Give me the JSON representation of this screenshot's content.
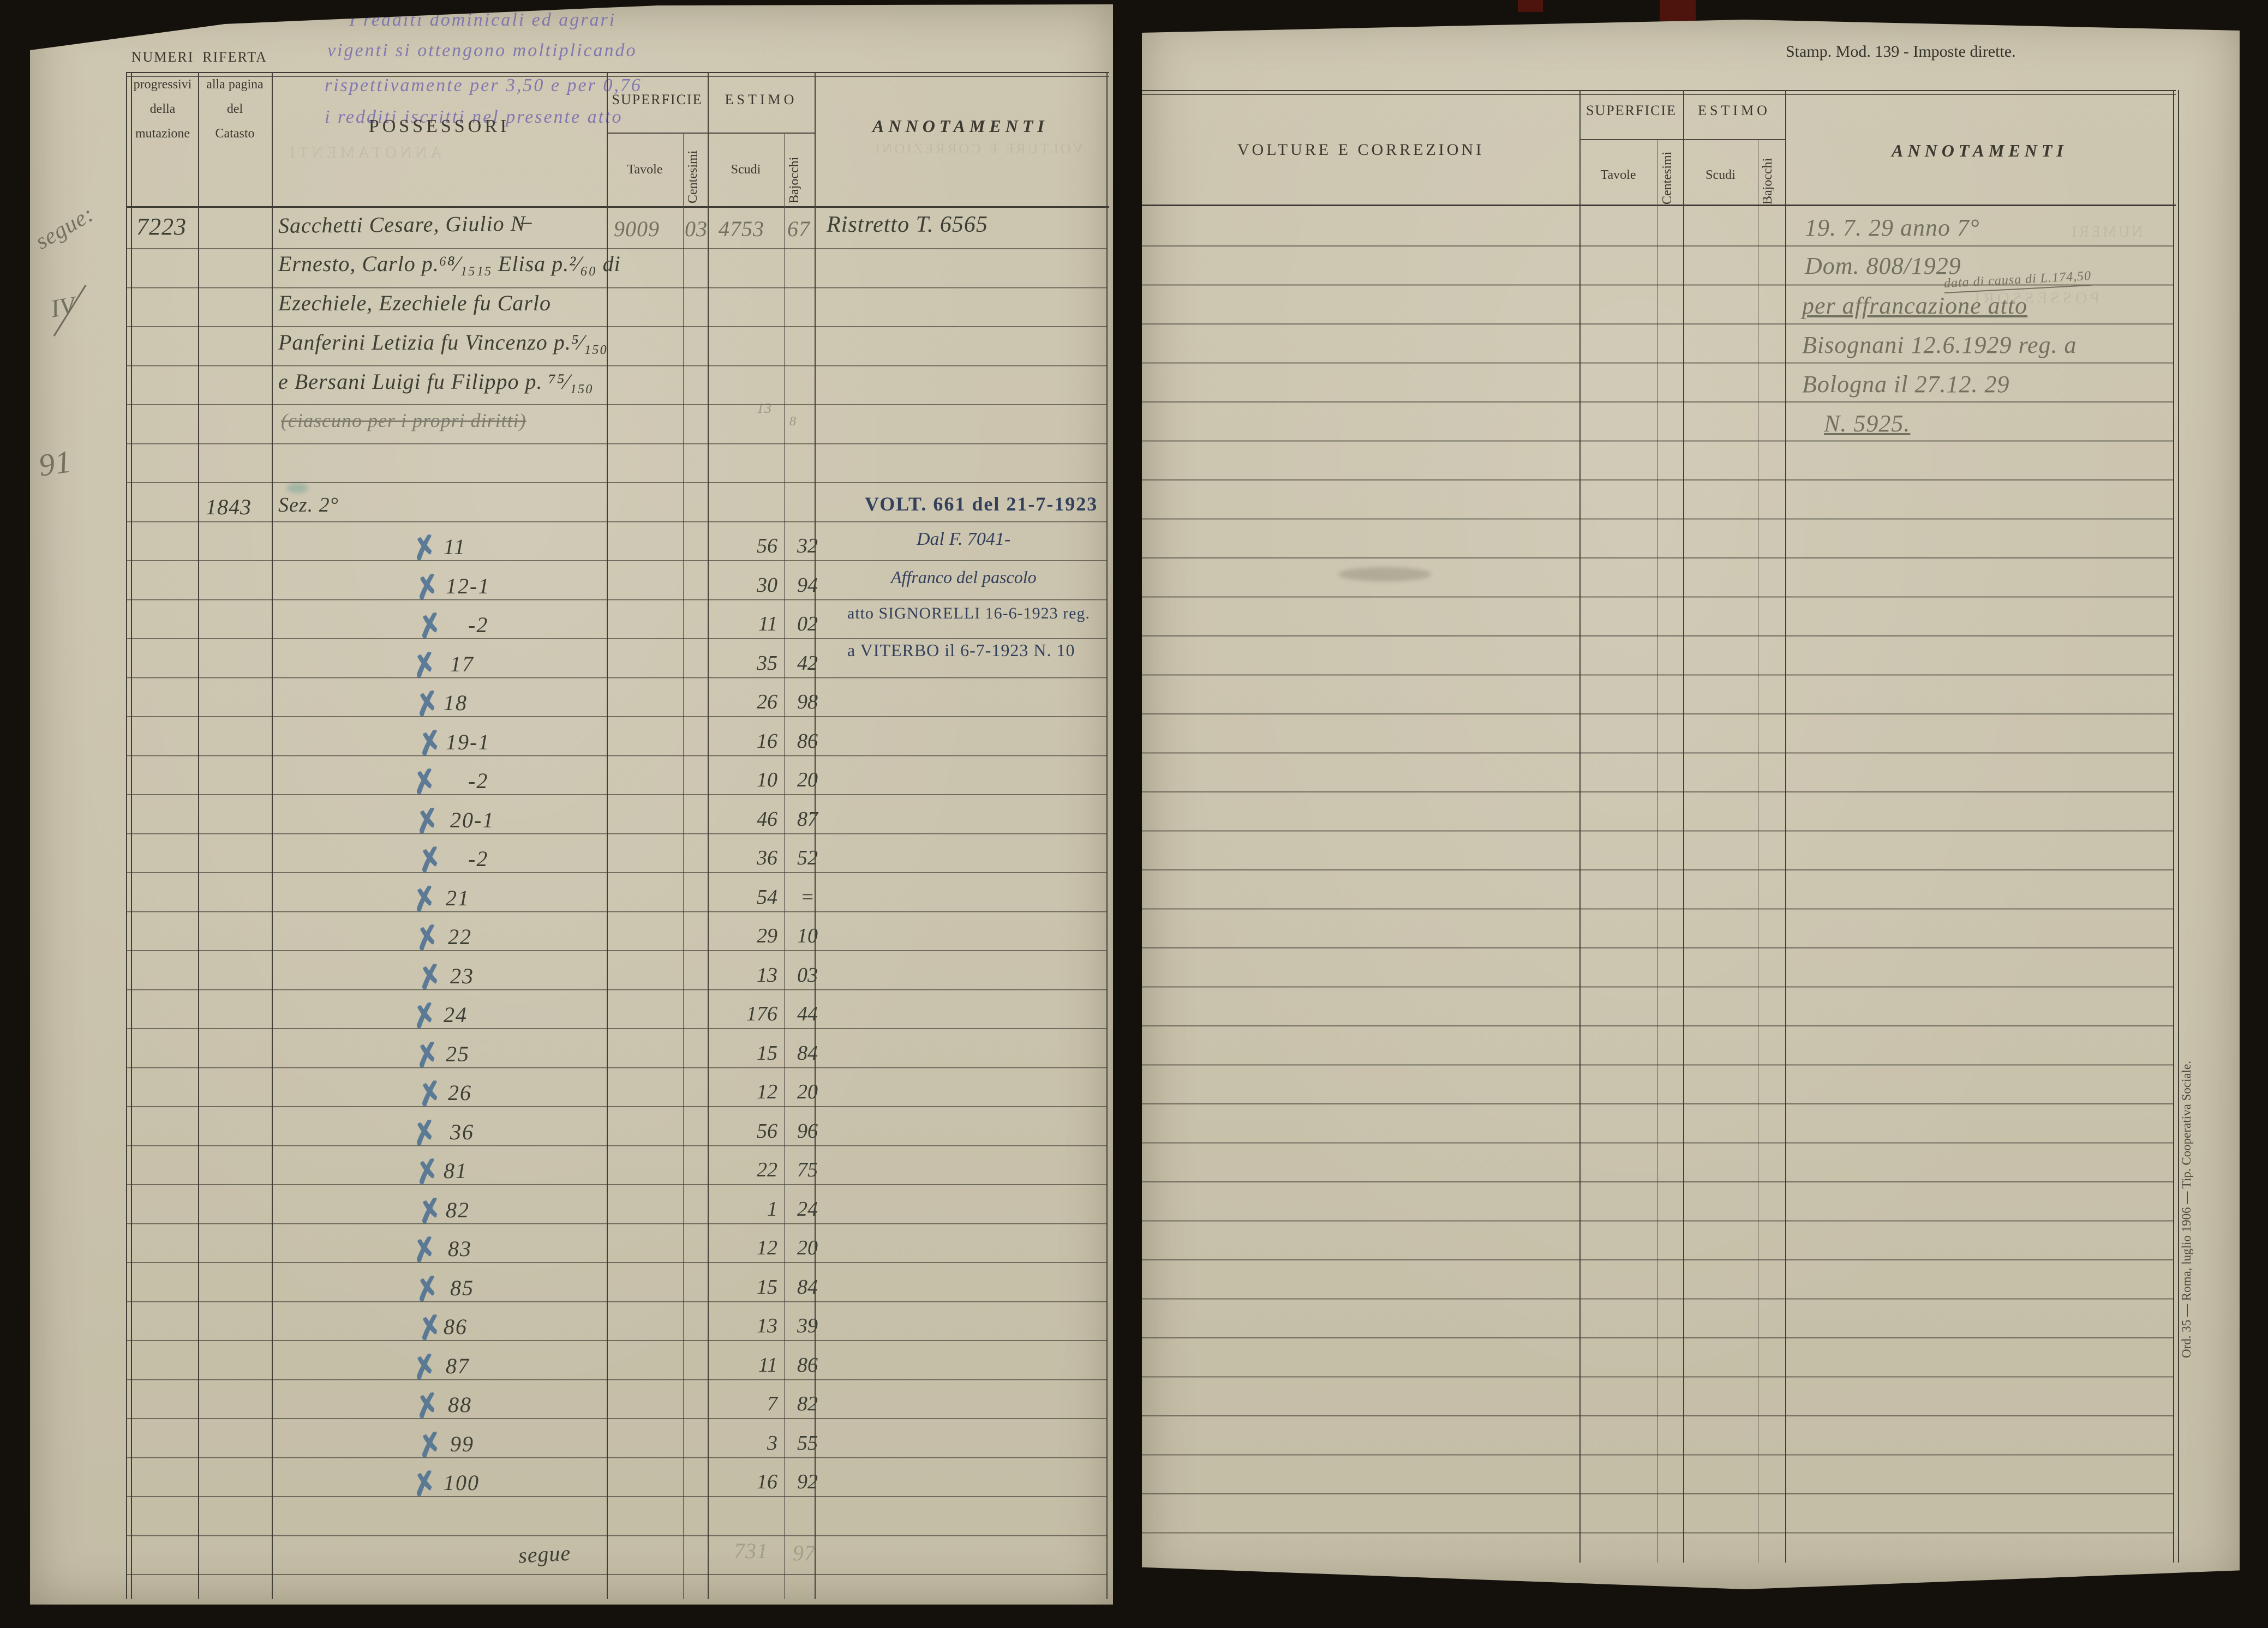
{
  "lp": {
    "margin": {
      "segue": "segue:",
      "iv": "IV",
      "num": "91"
    },
    "stamp": {
      "l1": "I redditi dominicali ed agrari",
      "l2": "vigenti si ottengono moltiplicando",
      "l3": "rispettivamente per 3,50 e per 0,76",
      "l4": "i redditi iscritti nel presente atto"
    },
    "head": {
      "numeri1": "NUMERI",
      "numeri2": "progressivi",
      "numeri3": "della",
      "numeri4": "mutazione",
      "riferta1": "RIFERTA",
      "riferta2": "alla pagina",
      "riferta3": "del",
      "riferta4": "Catasto",
      "possessori": "POSSESSORI",
      "superficie": "SUPERFICIE",
      "tavole": "Tavole",
      "centesimi": "Centesimi",
      "estimo": "ESTIMO",
      "scudi": "Scudi",
      "bajocchi": "Bajocchi",
      "annotamenti": "ANNOTAMENTI"
    },
    "e1": {
      "numero": "7223",
      "p1": "Sacchetti Cesare, Giulio N̶",
      "p2": "Ernesto, Carlo p.⁶⁸⁄₁₅₁₅ Elisa p.²⁄₆₀ di",
      "p3": "Ezechiele, Ezechiele fu Carlo",
      "p4": "Panferini Letizia fu Vincenzo p.⁵⁄₁₅₀",
      "p5": "e Bersani Luigi fu Filippo p. ⁷⁵⁄₁₅₀",
      "p6": "(ciascuno per i propri diritti)",
      "tavole": "9009",
      "cent": "03",
      "scudi": "4753",
      "baj": "67",
      "annot": "Ristretto T. 6565",
      "pencil1": "13",
      "pencil2": "8"
    },
    "e2": {
      "riferta": "1843",
      "sez": "Sez. 2°",
      "mark": "✗",
      "rows": [
        {
          "n": "11",
          "s": "56",
          "b": "32"
        },
        {
          "n": "12-1",
          "s": "30",
          "b": "94"
        },
        {
          "n": "-2",
          "s": "11",
          "b": "02"
        },
        {
          "n": "17",
          "s": "35",
          "b": "42"
        },
        {
          "n": "18",
          "s": "26",
          "b": "98"
        },
        {
          "n": "19-1",
          "s": "16",
          "b": "86"
        },
        {
          "n": "-2",
          "s": "10",
          "b": "20"
        },
        {
          "n": "20-1",
          "s": "46",
          "b": "87"
        },
        {
          "n": "-2",
          "s": "36",
          "b": "52"
        },
        {
          "n": "21",
          "s": "54",
          "b": "="
        },
        {
          "n": "22",
          "s": "29",
          "b": "10"
        },
        {
          "n": "23",
          "s": "13",
          "b": "03"
        },
        {
          "n": "24",
          "s": "176",
          "b": "44"
        },
        {
          "n": "25",
          "s": "15",
          "b": "84"
        },
        {
          "n": "26",
          "s": "12",
          "b": "20"
        },
        {
          "n": "36",
          "s": "56",
          "b": "96"
        },
        {
          "n": "81",
          "s": "22",
          "b": "75"
        },
        {
          "n": "82",
          "s": "1",
          "b": "24"
        },
        {
          "n": "83",
          "s": "12",
          "b": "20"
        },
        {
          "n": "85",
          "s": "15",
          "b": "84"
        },
        {
          "n": "86",
          "s": "13",
          "b": "39"
        },
        {
          "n": "87",
          "s": "11",
          "b": "86"
        },
        {
          "n": "88",
          "s": "7",
          "b": "82"
        },
        {
          "n": "99",
          "s": "3",
          "b": "55"
        },
        {
          "n": "100",
          "s": "16",
          "b": "92"
        }
      ],
      "stamp1": "VOLT. 661 del 21-7-1923",
      "stamp2": "Dal F. 7041-",
      "stamp3": "Affranco del pascolo",
      "stamp4": "atto SIGNORELLI 16-6-1923 reg.",
      "stamp5": "a VITERBO il 6-7-1923 N. 10",
      "segue": "segue",
      "tot_s": "731",
      "tot_b": "97"
    }
  },
  "rp": {
    "mod": "Stamp. Mod. 139 - Imposte dirette.",
    "head": {
      "volture": "VOLTURE E CORREZIONI",
      "superficie": "SUPERFICIE",
      "tavole": "Tavole",
      "centesimi": "Centesimi",
      "estimo": "ESTIMO",
      "scudi": "Scudi",
      "bajocchi": "Bajocchi",
      "annotamenti": "ANNOTAMENTI"
    },
    "a1": "19. 7. 29 anno 7°",
    "a2": "Dom. 808/1929",
    "a2b": "data di causa di L.174,50",
    "a3": "per affrancazione atto",
    "a4": "Bisognani 12.6.1929 reg. a",
    "a5": "Bologna il 27.12. 29",
    "a6": "N. 5925.",
    "imprint": "Ord. 35 — Roma, luglio 1906 — Tip. Cooperativa Sociale."
  },
  "colors": {
    "paper": "#cbc4ae",
    "ink": "#3d3f34",
    "pencil": "#72705f",
    "stamp_purple": "#7a6fb0",
    "stamp_blue": "#33405c",
    "blue_x": "#40688f",
    "scan_background": "#14110d"
  }
}
